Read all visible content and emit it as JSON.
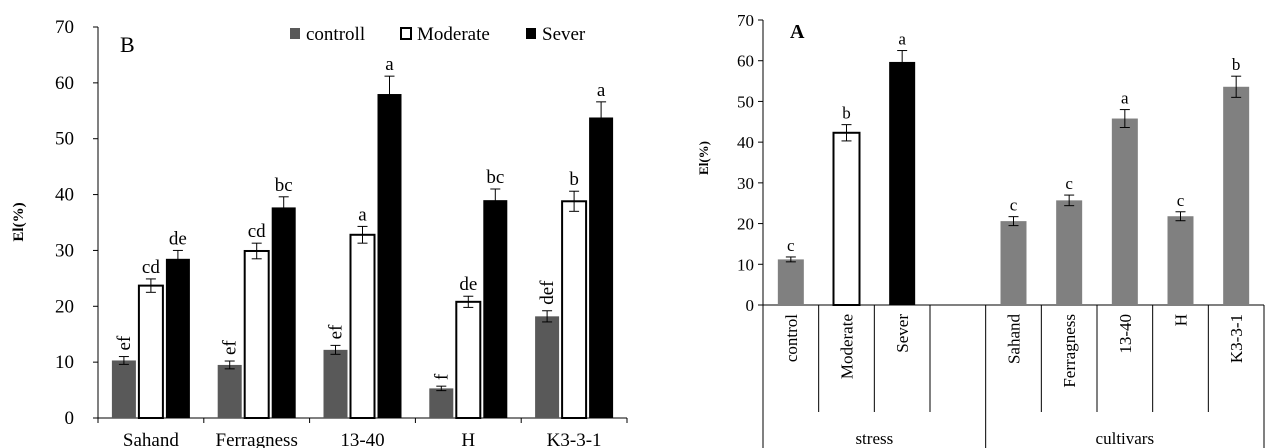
{
  "colors": {
    "controll": "#595959",
    "moderate": "#ffffff",
    "sever": "#000000",
    "cultivar": "#808080"
  },
  "chart_data": [
    {
      "type": "bar",
      "panel_label": "B",
      "ylabel": "El(%)",
      "ylim": [
        0,
        70
      ],
      "yticks": [
        0,
        10,
        20,
        30,
        40,
        50,
        60,
        70
      ],
      "legend": {
        "position": "top-right",
        "entries": [
          "controll",
          "Moderate",
          "Sever"
        ]
      },
      "categories": [
        "Sahand",
        "Ferragness",
        "13-40",
        "H",
        "K3-3-1"
      ],
      "series": [
        {
          "name": "controll",
          "values": [
            10.3,
            9.5,
            12.2,
            5.3,
            18.2
          ],
          "errors": [
            0.7,
            0.7,
            0.8,
            0.4,
            1.0
          ],
          "letters": [
            "ef",
            "ef",
            "ef",
            "f",
            "def"
          ],
          "letters_rotated": true
        },
        {
          "name": "Moderate",
          "values": [
            23.7,
            29.9,
            32.8,
            20.8,
            38.8
          ],
          "errors": [
            1.2,
            1.4,
            1.5,
            1.0,
            1.8
          ],
          "letters": [
            "cd",
            "cd",
            "a",
            "de",
            "b"
          ],
          "letters_rotated": false
        },
        {
          "name": "Sever",
          "values": [
            28.5,
            37.7,
            58.0,
            39.0,
            53.8
          ],
          "errors": [
            1.5,
            1.9,
            3.2,
            2.0,
            2.8
          ],
          "letters": [
            "de",
            "bc",
            "a",
            "bc",
            "a"
          ],
          "letters_rotated": false
        }
      ]
    },
    {
      "type": "bar",
      "panel_label": "A",
      "ylabel": "El(%)",
      "ylim": [
        0,
        70
      ],
      "yticks": [
        0,
        10,
        20,
        30,
        40,
        50,
        60,
        70
      ],
      "categories": [
        "control",
        "Moderate",
        "Sever",
        "",
        "Sahand",
        "Ferragness",
        "13-40",
        "H",
        "K3-3-1"
      ],
      "groups": [
        "stress",
        "cultivars"
      ],
      "values": [
        11.2,
        42.3,
        59.7,
        null,
        20.6,
        25.7,
        45.8,
        21.8,
        53.6
      ],
      "errors": [
        0.6,
        2.0,
        2.8,
        null,
        1.1,
        1.3,
        2.2,
        1.1,
        2.6
      ],
      "letters": [
        "c",
        "b",
        "a",
        "",
        "c",
        "c",
        "a",
        "c",
        "b"
      ]
    }
  ]
}
